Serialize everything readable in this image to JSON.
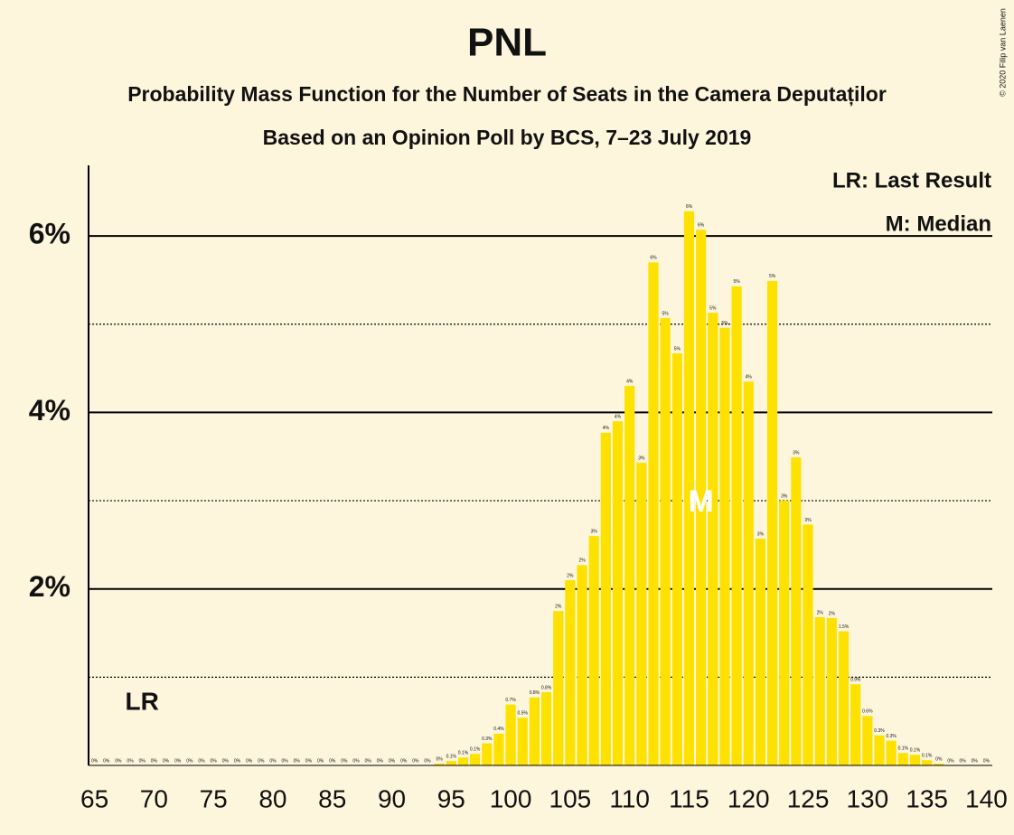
{
  "chart_data": {
    "type": "bar",
    "title": "PNL",
    "subtitle": "Probability Mass Function for the Number of Seats in the Camera Deputaților",
    "subtitle2": "Based on an Opinion Poll by BCS, 7–23 July 2019",
    "copyright": "© 2020 Filip van Laenen",
    "color": "#ffe100",
    "background": "#fdf6dc",
    "x": [
      65,
      66,
      67,
      68,
      69,
      70,
      71,
      72,
      73,
      74,
      75,
      76,
      77,
      78,
      79,
      80,
      81,
      82,
      83,
      84,
      85,
      86,
      87,
      88,
      89,
      90,
      91,
      92,
      93,
      94,
      95,
      96,
      97,
      98,
      99,
      100,
      101,
      102,
      103,
      104,
      105,
      106,
      107,
      108,
      109,
      110,
      111,
      112,
      113,
      114,
      115,
      116,
      117,
      118,
      119,
      120,
      121,
      122,
      123,
      124,
      125,
      126,
      127,
      128,
      129,
      130,
      131,
      132,
      133,
      134,
      135,
      136,
      137,
      138,
      139,
      140
    ],
    "values": [
      0,
      0,
      0,
      0,
      0,
      0,
      0,
      0,
      0,
      0,
      0,
      0,
      0,
      0,
      0,
      0,
      0,
      0,
      0,
      0,
      0,
      0,
      0,
      0,
      0,
      0,
      0,
      0,
      0,
      0.02,
      0.05,
      0.09,
      0.13,
      0.25,
      0.36,
      0.69,
      0.54,
      0.77,
      0.83,
      1.75,
      2.1,
      2.27,
      2.6,
      3.77,
      3.9,
      4.3,
      3.43,
      5.7,
      5.07,
      4.67,
      6.28,
      6.07,
      5.13,
      4.96,
      5.43,
      4.35,
      2.57,
      5.49,
      3.0,
      3.49,
      2.73,
      1.68,
      1.67,
      1.52,
      0.92,
      0.56,
      0.34,
      0.28,
      0.14,
      0.12,
      0.06,
      0.02,
      0,
      0,
      0,
      0
    ],
    "value_labels": [
      "0%",
      "0%",
      "0%",
      "0%",
      "0%",
      "0%",
      "0%",
      "0%",
      "0%",
      "0%",
      "0%",
      "0%",
      "0%",
      "0%",
      "0%",
      "0%",
      "0%",
      "0%",
      "0%",
      "0%",
      "0%",
      "0%",
      "0%",
      "0%",
      "0%",
      "0%",
      "0%",
      "0%",
      "0%",
      "0%",
      "0.1%",
      "0.1%",
      "0.1%",
      "0.3%",
      "0.4%",
      "0.7%",
      "0.5%",
      "0.8%",
      "0.8%",
      "2%",
      "2%",
      "2%",
      "3%",
      "4%",
      "4%",
      "4%",
      "3%",
      "6%",
      "5%",
      "5%",
      "6%",
      "6%",
      "5%",
      "5%",
      "5%",
      "4%",
      "3%",
      "5%",
      "3%",
      "3%",
      "3%",
      "2%",
      "2%",
      "1.5%",
      "0.9%",
      "0.6%",
      "0.3%",
      "0.3%",
      "0.1%",
      "0.1%",
      "0.1%",
      "0%",
      "0%",
      "0%",
      "0%",
      "0%"
    ],
    "xlim": [
      64.5,
      140.5
    ],
    "xticks": [
      65,
      70,
      75,
      80,
      85,
      90,
      95,
      100,
      105,
      110,
      115,
      120,
      125,
      130,
      135,
      140
    ],
    "ylim": [
      0,
      6.8
    ],
    "yticks": [
      {
        "value": 2,
        "label": "2%"
      },
      {
        "value": 4,
        "label": "4%"
      },
      {
        "value": 6,
        "label": "6%"
      }
    ],
    "minor_yticks": [
      1,
      3,
      5
    ],
    "grid": true,
    "legend": [
      "LR: Last Result",
      "M: Median"
    ],
    "annotations": {
      "last_result": {
        "x": 69,
        "label": "LR"
      },
      "median": {
        "x": 116,
        "label": "M"
      }
    }
  }
}
